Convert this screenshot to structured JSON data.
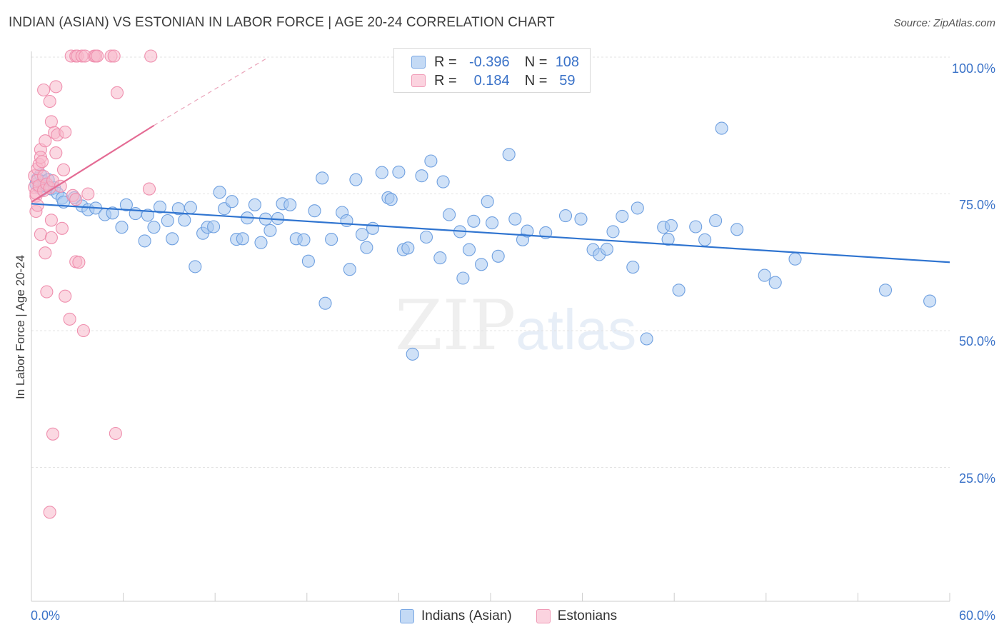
{
  "header": {
    "title": "INDIAN (ASIAN) VS ESTONIAN IN LABOR FORCE | AGE 20-24 CORRELATION CHART",
    "source": "Source: ZipAtlas.com"
  },
  "watermark": {
    "zip": "ZIP",
    "atlas": "atlas"
  },
  "legend": {
    "rows": [
      {
        "r_label": "R =",
        "r_value": "-0.396",
        "n_label": "N =",
        "n_value": "108",
        "color": "#a8c8f0"
      },
      {
        "r_label": "R =",
        "r_value": "0.184",
        "n_label": "N =",
        "n_value": "59",
        "color": "#f7b8cb"
      }
    ]
  },
  "bottom_legend": {
    "items": [
      {
        "label": "Indians (Asian)",
        "color": "#a8c8f0"
      },
      {
        "label": "Estonians",
        "color": "#f7b8cb"
      }
    ]
  },
  "chart_data": {
    "type": "scatter",
    "title": "INDIAN (ASIAN) VS ESTONIAN IN LABOR FORCE | AGE 20-24 CORRELATION CHART",
    "xlabel": "",
    "ylabel": "In Labor Force | Age 20-24",
    "x_tick_labels": [
      "0.0%",
      "60.0%"
    ],
    "y_tick_labels": [
      "100.0%",
      "75.0%",
      "50.0%",
      "25.0%"
    ],
    "xlim": [
      0,
      60
    ],
    "ylim": [
      0,
      102
    ],
    "grid": true,
    "legend_position": "top-center",
    "series": [
      {
        "name": "Indians (Asian)",
        "color": "#6fa0e0",
        "fill": "#a8c8f0",
        "trend": {
          "x0": 0,
          "y0": 73.2,
          "x1": 60,
          "y1": 62.5
        },
        "points": [
          [
            0.3,
            76.8
          ],
          [
            0.4,
            77.8
          ],
          [
            0.5,
            76.2
          ],
          [
            0.6,
            78.5
          ],
          [
            0.7,
            75.8
          ],
          [
            0.8,
            77.3
          ],
          [
            1.0,
            76.4
          ],
          [
            1.1,
            77.6
          ],
          [
            1.3,
            75.9
          ],
          [
            1.5,
            76.1
          ],
          [
            1.7,
            75.1
          ],
          [
            2.0,
            74.2
          ],
          [
            2.1,
            73.5
          ],
          [
            2.8,
            74.3
          ],
          [
            3.3,
            72.8
          ],
          [
            3.7,
            72.1
          ],
          [
            4.2,
            72.4
          ],
          [
            4.8,
            71.2
          ],
          [
            5.3,
            71.5
          ],
          [
            5.9,
            68.9
          ],
          [
            6.2,
            73.0
          ],
          [
            6.8,
            71.4
          ],
          [
            7.4,
            66.4
          ],
          [
            7.6,
            71.1
          ],
          [
            8.0,
            68.9
          ],
          [
            8.4,
            72.6
          ],
          [
            8.9,
            70.1
          ],
          [
            9.2,
            66.8
          ],
          [
            9.6,
            72.3
          ],
          [
            10.0,
            70.2
          ],
          [
            10.4,
            72.5
          ],
          [
            10.7,
            61.7
          ],
          [
            11.2,
            67.8
          ],
          [
            11.5,
            68.9
          ],
          [
            11.9,
            69.0
          ],
          [
            12.3,
            75.3
          ],
          [
            12.6,
            72.3
          ],
          [
            13.1,
            73.6
          ],
          [
            13.4,
            66.7
          ],
          [
            13.8,
            66.8
          ],
          [
            14.1,
            70.6
          ],
          [
            14.6,
            73.0
          ],
          [
            15.0,
            66.1
          ],
          [
            15.3,
            70.4
          ],
          [
            15.6,
            68.3
          ],
          [
            16.1,
            70.5
          ],
          [
            16.4,
            73.2
          ],
          [
            16.9,
            73.0
          ],
          [
            17.3,
            66.8
          ],
          [
            17.8,
            66.6
          ],
          [
            18.1,
            62.7
          ],
          [
            18.5,
            71.9
          ],
          [
            19.0,
            77.9
          ],
          [
            19.2,
            55.0
          ],
          [
            19.6,
            66.7
          ],
          [
            20.3,
            71.6
          ],
          [
            20.6,
            70.1
          ],
          [
            20.8,
            61.2
          ],
          [
            21.2,
            77.6
          ],
          [
            21.6,
            67.6
          ],
          [
            21.9,
            65.2
          ],
          [
            22.3,
            68.7
          ],
          [
            22.9,
            78.9
          ],
          [
            23.3,
            74.3
          ],
          [
            23.5,
            74.0
          ],
          [
            24.0,
            79.0
          ],
          [
            24.3,
            64.8
          ],
          [
            24.6,
            65.1
          ],
          [
            24.9,
            45.7
          ],
          [
            25.5,
            78.3
          ],
          [
            25.8,
            67.1
          ],
          [
            26.1,
            81.0
          ],
          [
            26.7,
            63.3
          ],
          [
            26.9,
            77.2
          ],
          [
            27.3,
            71.2
          ],
          [
            28.0,
            68.1
          ],
          [
            28.2,
            59.6
          ],
          [
            28.6,
            64.8
          ],
          [
            28.9,
            70.0
          ],
          [
            29.4,
            62.1
          ],
          [
            29.8,
            73.6
          ],
          [
            30.1,
            69.7
          ],
          [
            30.5,
            63.6
          ],
          [
            31.2,
            82.2
          ],
          [
            31.6,
            70.4
          ],
          [
            32.1,
            66.6
          ],
          [
            32.4,
            68.2
          ],
          [
            33.6,
            67.9
          ],
          [
            34.9,
            71.0
          ],
          [
            35.9,
            70.4
          ],
          [
            36.7,
            64.8
          ],
          [
            37.1,
            63.9
          ],
          [
            37.6,
            64.9
          ],
          [
            38.0,
            68.1
          ],
          [
            38.6,
            70.9
          ],
          [
            39.3,
            61.6
          ],
          [
            39.6,
            72.4
          ],
          [
            40.2,
            48.5
          ],
          [
            41.3,
            68.9
          ],
          [
            41.6,
            66.7
          ],
          [
            41.8,
            69.2
          ],
          [
            42.3,
            57.4
          ],
          [
            43.4,
            69.0
          ],
          [
            44.0,
            66.6
          ],
          [
            44.7,
            70.1
          ],
          [
            45.1,
            87.0
          ],
          [
            46.1,
            68.5
          ],
          [
            47.9,
            60.1
          ],
          [
            48.6,
            58.8
          ],
          [
            49.9,
            63.1
          ],
          [
            55.8,
            57.4
          ],
          [
            58.7,
            55.4
          ]
        ]
      },
      {
        "name": "Estonians",
        "color": "#ef8fae",
        "fill": "#f7b8cb",
        "trend": {
          "x0": 0,
          "y0": 73.5,
          "x1": 8,
          "y1": 87.5
        },
        "trend_dashed_to": {
          "x": 15.5,
          "y": 100.0
        },
        "points": [
          [
            0.2,
            78.3
          ],
          [
            0.2,
            76.2
          ],
          [
            0.3,
            74.6
          ],
          [
            0.3,
            71.8
          ],
          [
            0.3,
            75.1
          ],
          [
            0.4,
            77.5
          ],
          [
            0.4,
            79.6
          ],
          [
            0.4,
            72.9
          ],
          [
            0.5,
            80.4
          ],
          [
            0.5,
            76.5
          ],
          [
            0.6,
            67.6
          ],
          [
            0.6,
            83.1
          ],
          [
            0.6,
            81.7
          ],
          [
            0.7,
            80.9
          ],
          [
            0.8,
            94.0
          ],
          [
            0.8,
            78.2
          ],
          [
            0.8,
            75.6
          ],
          [
            0.9,
            64.2
          ],
          [
            0.9,
            84.7
          ],
          [
            1.0,
            57.1
          ],
          [
            1.0,
            76.8
          ],
          [
            1.2,
            76.1
          ],
          [
            1.2,
            91.9
          ],
          [
            1.3,
            88.2
          ],
          [
            1.3,
            70.2
          ],
          [
            1.3,
            67.0
          ],
          [
            1.4,
            31.1
          ],
          [
            1.4,
            77.4
          ],
          [
            1.5,
            86.2
          ],
          [
            1.6,
            82.5
          ],
          [
            1.6,
            94.6
          ],
          [
            1.7,
            85.8
          ],
          [
            1.9,
            76.4
          ],
          [
            2.0,
            68.7
          ],
          [
            2.1,
            79.4
          ],
          [
            2.2,
            86.3
          ],
          [
            2.2,
            56.3
          ],
          [
            2.5,
            52.1
          ],
          [
            2.6,
            100.2
          ],
          [
            2.7,
            74.7
          ],
          [
            2.9,
            62.6
          ],
          [
            2.9,
            74.0
          ],
          [
            2.9,
            100.2
          ],
          [
            3.0,
            100.2
          ],
          [
            3.1,
            62.5
          ],
          [
            3.3,
            100.2
          ],
          [
            3.4,
            50.0
          ],
          [
            3.5,
            100.2
          ],
          [
            3.7,
            75.0
          ],
          [
            4.1,
            100.2
          ],
          [
            4.2,
            100.2
          ],
          [
            4.3,
            100.2
          ],
          [
            5.2,
            100.2
          ],
          [
            5.4,
            100.2
          ],
          [
            5.5,
            31.2
          ],
          [
            5.6,
            93.5
          ],
          [
            7.7,
            75.9
          ],
          [
            7.8,
            100.2
          ],
          [
            1.2,
            16.8
          ]
        ]
      }
    ]
  }
}
